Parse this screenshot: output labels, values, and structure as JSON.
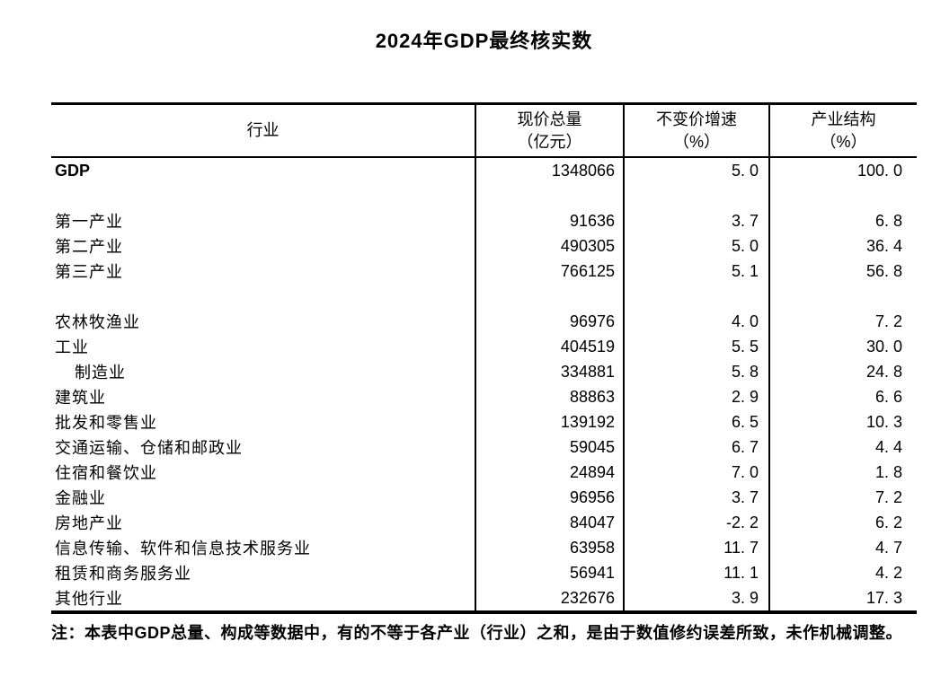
{
  "page": {
    "background_color": "#ffffff",
    "text_color": "#000000",
    "border_color": "#000000"
  },
  "title": "2024年GDP最终核实数",
  "table": {
    "columns": [
      {
        "label": "行业",
        "sublabel": ""
      },
      {
        "label": "现价总量",
        "sublabel": "（亿元）"
      },
      {
        "label": "不变价增速",
        "sublabel": "（%）"
      },
      {
        "label": "产业结构",
        "sublabel": "（%）"
      }
    ],
    "rows": [
      {
        "label": "GDP",
        "bold": true,
        "indent": false,
        "values": [
          "1348066",
          "5. 0",
          "100. 0"
        ]
      },
      {
        "label": "",
        "bold": false,
        "indent": false,
        "values": [
          "",
          "",
          ""
        ]
      },
      {
        "label": "第一产业",
        "bold": false,
        "indent": false,
        "values": [
          "91636",
          "3. 7",
          "6. 8"
        ]
      },
      {
        "label": "第二产业",
        "bold": false,
        "indent": false,
        "values": [
          "490305",
          "5. 0",
          "36. 4"
        ]
      },
      {
        "label": "第三产业",
        "bold": false,
        "indent": false,
        "values": [
          "766125",
          "5. 1",
          "56. 8"
        ]
      },
      {
        "label": "",
        "bold": false,
        "indent": false,
        "values": [
          "",
          "",
          ""
        ]
      },
      {
        "label": "农林牧渔业",
        "bold": false,
        "indent": false,
        "values": [
          "96976",
          "4. 0",
          "7. 2"
        ]
      },
      {
        "label": "工业",
        "bold": false,
        "indent": false,
        "values": [
          "404519",
          "5. 5",
          "30. 0"
        ]
      },
      {
        "label": "制造业",
        "bold": false,
        "indent": true,
        "values": [
          "334881",
          "5. 8",
          "24. 8"
        ]
      },
      {
        "label": "建筑业",
        "bold": false,
        "indent": false,
        "values": [
          "88863",
          "2. 9",
          "6. 6"
        ]
      },
      {
        "label": "批发和零售业",
        "bold": false,
        "indent": false,
        "values": [
          "139192",
          "6. 5",
          "10. 3"
        ]
      },
      {
        "label": "交通运输、仓储和邮政业",
        "bold": false,
        "indent": false,
        "values": [
          "59045",
          "6. 7",
          "4. 4"
        ]
      },
      {
        "label": "住宿和餐饮业",
        "bold": false,
        "indent": false,
        "values": [
          "24894",
          "7. 0",
          "1. 8"
        ]
      },
      {
        "label": "金融业",
        "bold": false,
        "indent": false,
        "values": [
          "96956",
          "3. 7",
          "7. 2"
        ]
      },
      {
        "label": "房地产业",
        "bold": false,
        "indent": false,
        "values": [
          "84047",
          "-2. 2",
          "6. 2"
        ]
      },
      {
        "label": "信息传输、软件和信息技术服务业",
        "bold": false,
        "indent": false,
        "values": [
          "63958",
          "11. 7",
          "4. 7"
        ]
      },
      {
        "label": "租赁和商务服务业",
        "bold": false,
        "indent": false,
        "values": [
          "56941",
          "11. 1",
          "4. 2"
        ]
      },
      {
        "label": "其他行业",
        "bold": false,
        "indent": false,
        "values": [
          "232676",
          "3. 9",
          "17. 3"
        ]
      }
    ]
  },
  "note": "注：本表中GDP总量、构成等数据中，有的不等于各产业（行业）之和，是由于数值修约误差所致，未作机械调整。"
}
